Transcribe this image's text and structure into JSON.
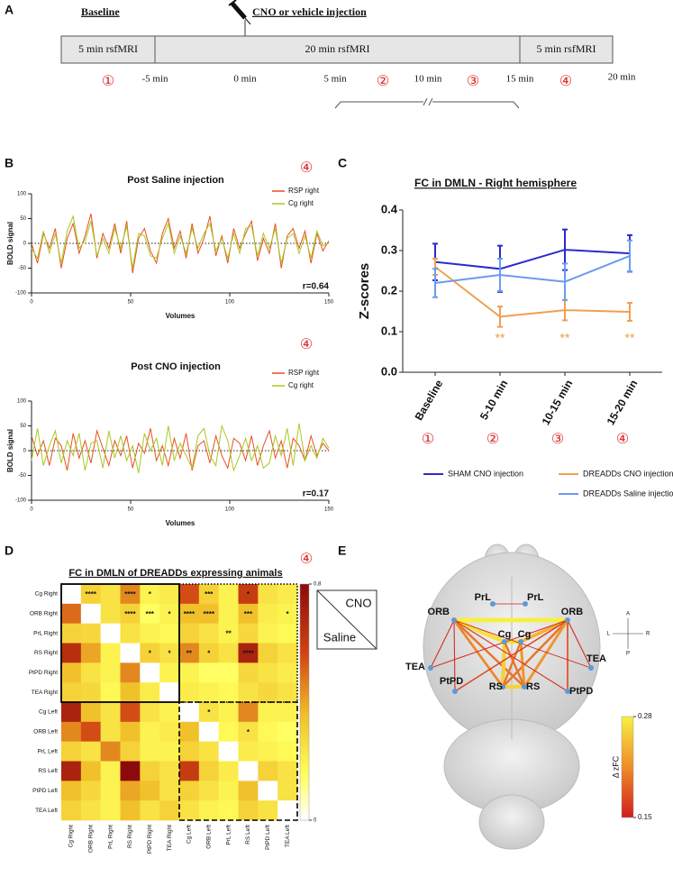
{
  "panel_labels": [
    "A",
    "B",
    "C",
    "D",
    "E"
  ],
  "timeline": {
    "baseline": "Baseline",
    "injection": "CNO or vehicle injection",
    "segments": [
      "5 min rsfMRI",
      "20 min rsfMRI",
      "5 min rsfMRI"
    ],
    "times": [
      "-5 min",
      "0 min",
      "5 min",
      "10 min",
      "15 min",
      "20 min"
    ],
    "periods": [
      "①",
      "②",
      "③",
      "④"
    ]
  },
  "period_markers": [
    "④",
    "④",
    "④"
  ],
  "chart_data": [
    {
      "type": "line",
      "title": "Post Saline injection",
      "x_label": "Volumes",
      "y_label": "BOLD signal",
      "annotation": "r=0.64",
      "x": [
        0,
        3,
        6,
        9,
        12,
        15,
        18,
        21,
        24,
        27,
        30,
        33,
        36,
        39,
        42,
        45,
        48,
        51,
        54,
        57,
        60,
        63,
        66,
        69,
        72,
        75,
        78,
        81,
        84,
        87,
        90,
        93,
        96,
        99,
        102,
        105,
        108,
        111,
        114,
        117,
        120,
        123,
        126,
        129,
        132,
        135,
        138,
        141,
        144,
        147,
        150
      ],
      "xlim": [
        0,
        150
      ],
      "xticks": [
        0,
        50,
        100,
        150
      ],
      "ylim": [
        -100,
        100
      ],
      "yticks": [
        -100,
        -50,
        0,
        50,
        100
      ],
      "series": [
        {
          "name": "RSP right",
          "color": "#e8501e",
          "values": [
            0,
            -40,
            20,
            -10,
            30,
            -50,
            10,
            40,
            -20,
            15,
            60,
            -30,
            20,
            -10,
            40,
            -20,
            45,
            -60,
            10,
            30,
            -15,
            -40,
            20,
            50,
            -10,
            25,
            -30,
            40,
            -20,
            10,
            55,
            -25,
            15,
            -40,
            30,
            -10,
            20,
            45,
            -35,
            10,
            -20,
            40,
            -50,
            15,
            30,
            -10,
            25,
            -40,
            20,
            -15,
            5
          ]
        },
        {
          "name": "Cg right",
          "color": "#a8c820",
          "values": [
            -10,
            -30,
            25,
            -20,
            20,
            -40,
            25,
            55,
            -10,
            5,
            45,
            -25,
            10,
            -20,
            30,
            -10,
            35,
            -50,
            20,
            15,
            -25,
            -30,
            10,
            40,
            -20,
            15,
            -20,
            30,
            -10,
            20,
            40,
            -15,
            10,
            -30,
            20,
            -20,
            30,
            35,
            -25,
            20,
            -10,
            30,
            -40,
            10,
            20,
            -20,
            15,
            -30,
            25,
            -5,
            0
          ]
        }
      ]
    },
    {
      "type": "line",
      "title": "Post CNO injection",
      "x_label": "Volumes",
      "y_label": "BOLD signal",
      "annotation": "r=0.17",
      "x": [
        0,
        3,
        6,
        9,
        12,
        15,
        18,
        21,
        24,
        27,
        30,
        33,
        36,
        39,
        42,
        45,
        48,
        51,
        54,
        57,
        60,
        63,
        66,
        69,
        72,
        75,
        78,
        81,
        84,
        87,
        90,
        93,
        96,
        99,
        102,
        105,
        108,
        111,
        114,
        117,
        120,
        123,
        126,
        129,
        132,
        135,
        138,
        141,
        144,
        147,
        150
      ],
      "xlim": [
        0,
        150
      ],
      "xticks": [
        0,
        50,
        100,
        150
      ],
      "ylim": [
        -100,
        100
      ],
      "yticks": [
        -100,
        -50,
        0,
        50,
        100
      ],
      "series": [
        {
          "name": "RSP right",
          "color": "#e8501e",
          "values": [
            30,
            -10,
            20,
            -30,
            25,
            10,
            -40,
            35,
            -15,
            20,
            -25,
            40,
            5,
            -30,
            20,
            -10,
            30,
            -35,
            15,
            -5,
            45,
            -20,
            10,
            -30,
            25,
            -15,
            35,
            -40,
            10,
            20,
            -25,
            30,
            -10,
            -35,
            25,
            15,
            -20,
            30,
            -30,
            10,
            40,
            -15,
            20,
            -35,
            25,
            10,
            -20,
            30,
            -10,
            15,
            0
          ]
        },
        {
          "name": "Cg right",
          "color": "#a8c820",
          "values": [
            -20,
            45,
            -30,
            10,
            40,
            -25,
            20,
            -10,
            35,
            -40,
            15,
            20,
            -35,
            40,
            -15,
            30,
            -20,
            10,
            -45,
            35,
            0,
            25,
            -30,
            50,
            -20,
            15,
            -10,
            -35,
            30,
            45,
            -10,
            -30,
            50,
            20,
            -40,
            -10,
            25,
            -20,
            10,
            -35,
            -25,
            30,
            -10,
            45,
            -30,
            55,
            -20,
            10,
            -15,
            25,
            5
          ]
        }
      ]
    },
    {
      "type": "line",
      "title": "FC in DMLN - Right hemisphere",
      "y_label": "Z-scores",
      "categories": [
        "Baseline",
        "5-10 min",
        "10-15 min",
        "15-20 min"
      ],
      "category_markers": [
        "①",
        "②",
        "③",
        "④"
      ],
      "ylim": [
        0,
        0.4
      ],
      "yticks": [
        {
          "value": 0,
          "label": "0.0"
        },
        0.1,
        0.2,
        0.3,
        0.4
      ],
      "series": [
        {
          "name": "SHAM CNO injection",
          "color": "#2a2ad0",
          "values": [
            0.272,
            0.255,
            0.302,
            0.293
          ],
          "errors": [
            0.045,
            0.057,
            0.05,
            0.045
          ]
        },
        {
          "name": "DREADDs CNO injection",
          "color": "#f0a050",
          "values": [
            0.26,
            0.137,
            0.153,
            0.149
          ],
          "errors": [
            0.02,
            0.025,
            0.025,
            0.022
          ]
        },
        {
          "name": "DREADDs Saline injection",
          "color": "#6b9af0",
          "values": [
            0.22,
            0.24,
            0.223,
            0.287
          ],
          "errors": [
            0.035,
            0.04,
            0.045,
            0.038
          ]
        }
      ],
      "annotations": [
        {
          "category": 1,
          "label": "**"
        },
        {
          "category": 2,
          "label": "**"
        },
        {
          "category": 3,
          "label": "**"
        }
      ],
      "annotation_color": "#e8a040"
    },
    {
      "type": "heatmap",
      "title": "FC in DMLN of DREADDs expressing animals",
      "rows": [
        "Cg Right",
        "ORB Right",
        "PrL Right",
        "RS Right",
        "PtPD Right",
        "TEA Right",
        "Cg Left",
        "ORB Left",
        "PrL Left",
        "RS Left",
        "PtPD Left",
        "TEA Left"
      ],
      "columns": [
        "Cg Right",
        "ORB Right",
        "PrL Right",
        "RS Right",
        "PtPD Right",
        "TEA Right",
        "Cg Left",
        "ORB Left",
        "PrL Left",
        "RS Left",
        "PtPD Left",
        "TEA Left"
      ],
      "values": [
        [
          null,
          0.3,
          0.25,
          0.45,
          0.2,
          0.22,
          0.55,
          0.3,
          0.2,
          0.6,
          0.25,
          0.22
        ],
        [
          0.5,
          null,
          0.25,
          0.3,
          0.15,
          0.2,
          0.35,
          0.35,
          0.2,
          0.35,
          0.22,
          0.2
        ],
        [
          0.3,
          0.28,
          null,
          0.25,
          0.2,
          0.18,
          0.3,
          0.25,
          0.2,
          0.28,
          0.2,
          0.18
        ],
        [
          0.65,
          0.4,
          0.2,
          null,
          0.3,
          0.25,
          0.45,
          0.3,
          0.25,
          0.7,
          0.3,
          0.25
        ],
        [
          0.35,
          0.25,
          0.2,
          0.45,
          null,
          0.2,
          0.2,
          0.15,
          0.15,
          0.28,
          0.25,
          0.22
        ],
        [
          0.3,
          0.28,
          0.18,
          0.35,
          0.22,
          null,
          0.22,
          0.2,
          0.18,
          0.25,
          0.28,
          0.25
        ],
        [
          0.7,
          0.35,
          0.25,
          0.55,
          0.25,
          0.2,
          null,
          0.25,
          0.2,
          0.45,
          0.2,
          0.2
        ],
        [
          0.45,
          0.55,
          0.25,
          0.35,
          0.2,
          0.22,
          0.35,
          null,
          0.18,
          0.25,
          0.18,
          0.15
        ],
        [
          0.3,
          0.25,
          0.45,
          0.3,
          0.2,
          0.2,
          0.3,
          0.25,
          null,
          0.22,
          0.2,
          0.18
        ],
        [
          0.7,
          0.35,
          0.2,
          0.8,
          0.3,
          0.25,
          0.6,
          0.3,
          0.22,
          null,
          0.3,
          0.25
        ],
        [
          0.35,
          0.28,
          0.2,
          0.4,
          0.35,
          0.25,
          0.3,
          0.25,
          0.2,
          0.35,
          null,
          0.25
        ],
        [
          0.3,
          0.25,
          0.2,
          0.35,
          0.25,
          0.3,
          0.25,
          0.2,
          0.18,
          0.3,
          0.25,
          null
        ]
      ],
      "zlim": [
        0,
        0.8
      ],
      "zticks": [
        0,
        0.8
      ],
      "annotations": [
        {
          "row": 0,
          "col": 1,
          "label": "****"
        },
        {
          "row": 0,
          "col": 3,
          "label": "****"
        },
        {
          "row": 0,
          "col": 4,
          "label": "*"
        },
        {
          "row": 0,
          "col": 7,
          "label": "***"
        },
        {
          "row": 0,
          "col": 9,
          "label": "*"
        },
        {
          "row": 1,
          "col": 3,
          "label": "****"
        },
        {
          "row": 1,
          "col": 4,
          "label": "***"
        },
        {
          "row": 1,
          "col": 5,
          "label": "*"
        },
        {
          "row": 1,
          "col": 6,
          "label": "****"
        },
        {
          "row": 1,
          "col": 7,
          "label": "****"
        },
        {
          "row": 1,
          "col": 9,
          "label": "***"
        },
        {
          "row": 1,
          "col": 11,
          "label": "*"
        },
        {
          "row": 2,
          "col": 8,
          "label": "**"
        },
        {
          "row": 3,
          "col": 4,
          "label": "*"
        },
        {
          "row": 3,
          "col": 5,
          "label": "*"
        },
        {
          "row": 3,
          "col": 6,
          "label": "**"
        },
        {
          "row": 3,
          "col": 7,
          "label": "*"
        },
        {
          "row": 3,
          "col": 9,
          "label": "****"
        },
        {
          "row": 6,
          "col": 7,
          "label": "*"
        },
        {
          "row": 7,
          "col": 9,
          "label": "*"
        }
      ],
      "legend_labels": [
        "CNO",
        "Saline"
      ]
    }
  ],
  "brain": {
    "nodes": [
      "PrL",
      "PrL",
      "ORB",
      "ORB",
      "Cg",
      "Cg",
      "RS",
      "RS",
      "TEA",
      "TEA",
      "PtPD",
      "PtPD"
    ],
    "edges": [
      {
        "source": 2,
        "target": 3,
        "value": 0.28
      },
      {
        "source": 0,
        "target": 1,
        "value": 0.15
      },
      {
        "source": 4,
        "target": 5,
        "value": 0.27
      },
      {
        "source": 6,
        "target": 7,
        "value": 0.26
      },
      {
        "source": 2,
        "target": 4,
        "value": 0.27
      },
      {
        "source": 3,
        "target": 5,
        "value": 0.24
      },
      {
        "source": 3,
        "target": 6,
        "value": 0.2
      },
      {
        "source": 2,
        "target": 7,
        "value": 0.2
      },
      {
        "source": 3,
        "target": 7,
        "value": 0.22
      },
      {
        "source": 2,
        "target": 6,
        "value": 0.21
      },
      {
        "source": 4,
        "target": 6,
        "value": 0.26
      },
      {
        "source": 5,
        "target": 7,
        "value": 0.22
      },
      {
        "source": 4,
        "target": 7,
        "value": 0.2
      },
      {
        "source": 5,
        "target": 6,
        "value": 0.2
      },
      {
        "source": 3,
        "target": 11,
        "value": 0.18
      },
      {
        "source": 2,
        "target": 8,
        "value": 0.16
      },
      {
        "source": 3,
        "target": 8,
        "value": 0.16
      },
      {
        "source": 2,
        "target": 10,
        "value": 0.16
      },
      {
        "source": 3,
        "target": 10,
        "value": 0.17
      },
      {
        "source": 2,
        "target": 11,
        "value": 0.16
      },
      {
        "source": 3,
        "target": 9,
        "value": 0.16
      },
      {
        "source": 2,
        "target": 9,
        "value": 0.15
      }
    ],
    "clim": [
      0.15,
      0.28
    ],
    "cticks": [
      0.15,
      0.28
    ],
    "colorbar_label": "Δ zFC",
    "compass": [
      "A",
      "P",
      "L",
      "R"
    ]
  }
}
